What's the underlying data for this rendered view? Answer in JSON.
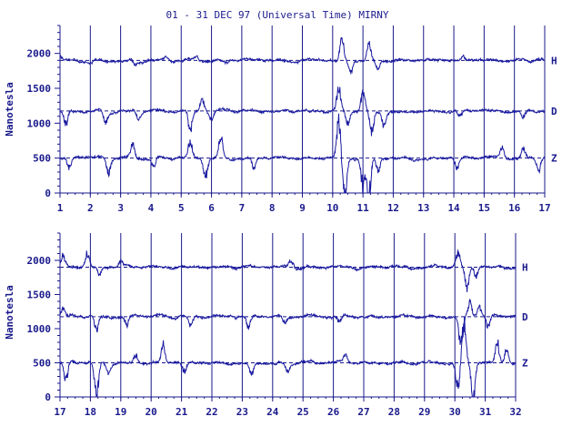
{
  "title": "01 - 31 DEC 97 (Universal Time) MIRNY",
  "colors": {
    "ink": "#1a1a8c",
    "trace": "#1a1aa0",
    "background": "#ffffff"
  },
  "chart_data": [
    {
      "type": "line",
      "ylabel": "Nanotesla",
      "ylim": [
        0,
        2400
      ],
      "yticks": [
        "0",
        "500",
        "1000",
        "1500",
        "2000"
      ],
      "x_range": [
        1,
        17
      ],
      "xticks": [
        "1",
        "2",
        "3",
        "4",
        "5",
        "6",
        "7",
        "8",
        "9",
        "10",
        "11",
        "12",
        "13",
        "14",
        "15",
        "16",
        "17"
      ],
      "baselines": [
        1900,
        1175,
        500
      ],
      "series": [
        {
          "name": "H",
          "baseline": 1900,
          "events": [
            [
              1.0,
              60
            ],
            [
              2.0,
              -40
            ],
            [
              3.5,
              -60
            ],
            [
              4.5,
              50
            ],
            [
              5.5,
              70
            ],
            [
              6.5,
              -30
            ],
            [
              10.3,
              300
            ],
            [
              10.6,
              -150
            ],
            [
              11.2,
              250
            ],
            [
              11.5,
              -120
            ],
            [
              14.3,
              60
            ],
            [
              16.5,
              -40
            ]
          ]
        },
        {
          "name": "D",
          "baseline": 1175,
          "events": [
            [
              1.2,
              -200
            ],
            [
              2.5,
              -150
            ],
            [
              3.6,
              -120
            ],
            [
              5.3,
              -280
            ],
            [
              5.7,
              200
            ],
            [
              6.0,
              -120
            ],
            [
              10.2,
              300
            ],
            [
              10.5,
              -180
            ],
            [
              11.0,
              250
            ],
            [
              11.3,
              -300
            ],
            [
              11.7,
              -200
            ],
            [
              14.2,
              -100
            ],
            [
              16.3,
              -120
            ]
          ]
        },
        {
          "name": "Z",
          "baseline": 500,
          "events": [
            [
              1.3,
              -150
            ],
            [
              2.6,
              -200
            ],
            [
              3.4,
              200
            ],
            [
              4.1,
              -120
            ],
            [
              5.3,
              250
            ],
            [
              5.8,
              -250
            ],
            [
              6.3,
              280
            ],
            [
              7.4,
              -150
            ],
            [
              10.2,
              500
            ],
            [
              10.4,
              -600
            ],
            [
              11.0,
              -400
            ],
            [
              11.2,
              -550
            ],
            [
              11.5,
              -200
            ],
            [
              14.1,
              -180
            ],
            [
              15.6,
              150
            ],
            [
              16.3,
              120
            ],
            [
              16.8,
              -180
            ]
          ]
        }
      ]
    },
    {
      "type": "line",
      "ylabel": "Nanotesla",
      "ylim": [
        0,
        2400
      ],
      "yticks": [
        "0",
        "500",
        "1000",
        "1500",
        "2000"
      ],
      "x_range": [
        17,
        32
      ],
      "xticks": [
        "17",
        "18",
        "19",
        "20",
        "21",
        "22",
        "23",
        "24",
        "25",
        "26",
        "27",
        "28",
        "29",
        "30",
        "31",
        "32"
      ],
      "baselines": [
        1900,
        1175,
        500
      ],
      "series": [
        {
          "name": "H",
          "baseline": 1900,
          "events": [
            [
              17.1,
              150
            ],
            [
              17.9,
              200
            ],
            [
              18.3,
              -120
            ],
            [
              19.0,
              100
            ],
            [
              24.6,
              100
            ],
            [
              30.1,
              200
            ],
            [
              30.4,
              -300
            ],
            [
              30.7,
              -150
            ]
          ]
        },
        {
          "name": "D",
          "baseline": 1175,
          "events": [
            [
              17.1,
              100
            ],
            [
              18.2,
              -200
            ],
            [
              19.2,
              -150
            ],
            [
              21.3,
              -150
            ],
            [
              23.2,
              -150
            ],
            [
              24.4,
              -100
            ],
            [
              26.2,
              -100
            ],
            [
              30.2,
              -450
            ],
            [
              30.5,
              200
            ],
            [
              30.8,
              150
            ],
            [
              31.1,
              -150
            ]
          ]
        },
        {
          "name": "Z",
          "baseline": 500,
          "events": [
            [
              17.2,
              -250
            ],
            [
              18.2,
              -500
            ],
            [
              18.6,
              -150
            ],
            [
              19.5,
              120
            ],
            [
              20.4,
              250
            ],
            [
              21.1,
              -150
            ],
            [
              23.3,
              -150
            ],
            [
              24.5,
              -120
            ],
            [
              26.4,
              120
            ],
            [
              30.1,
              -350
            ],
            [
              30.3,
              600
            ],
            [
              30.6,
              -500
            ],
            [
              31.4,
              300
            ],
            [
              31.7,
              200
            ]
          ]
        }
      ]
    }
  ]
}
